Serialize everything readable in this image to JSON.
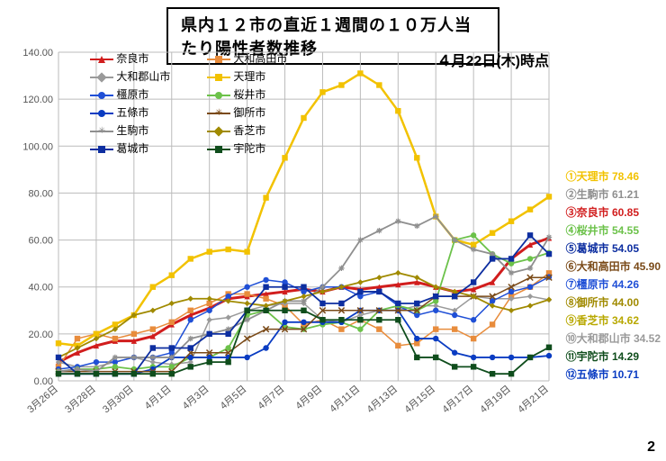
{
  "title": "県内１２市の直近１週間の１０万人当たり陽性者数推移",
  "subtitle": "４月22日(木)時点",
  "page_number": "2",
  "chart": {
    "type": "line",
    "ylim": [
      0,
      140
    ],
    "ytick_step": 20,
    "xticks": [
      "3月26日",
      "3月28日",
      "3月30日",
      "4月1日",
      "4月3日",
      "4月5日",
      "4月7日",
      "4月9日",
      "4月11日",
      "4月13日",
      "4月15日",
      "4月17日",
      "4月19日",
      "4月21日"
    ],
    "n_points": 27,
    "grid_color": "#bbbbbb",
    "background": "#ffffff",
    "series": [
      {
        "key": "nara",
        "name": "奈良市",
        "color": "#d11d1d",
        "marker": "triangle",
        "width": 3,
        "data": [
          8,
          12,
          15,
          17,
          17,
          19,
          24,
          28,
          31,
          35,
          36,
          37,
          38,
          39,
          38,
          40,
          39,
          40,
          41,
          42,
          40,
          38,
          39,
          42,
          52,
          58,
          60.85
        ]
      },
      {
        "key": "yamatotakada",
        "name": "大和高田市",
        "color": "#e88c3c",
        "marker": "square",
        "width": 1.5,
        "data": [
          6,
          18,
          20,
          18,
          20,
          22,
          25,
          30,
          33,
          37,
          37,
          35,
          32,
          24,
          26,
          22,
          26,
          22,
          15,
          16,
          22,
          22,
          18,
          24,
          36,
          40,
          45.9
        ]
      },
      {
        "key": "yamatokoriyama",
        "name": "大和郡山市",
        "color": "#9a9a9a",
        "marker": "diamond",
        "width": 1.5,
        "data": [
          8,
          6,
          6,
          8,
          10,
          8,
          7,
          8,
          26,
          27,
          30,
          32,
          33,
          33,
          26,
          25,
          28,
          30,
          30,
          32,
          32,
          30,
          36,
          35,
          35,
          36,
          34.52
        ]
      },
      {
        "key": "tenri",
        "name": "天理市",
        "color": "#f2c200",
        "marker": "square",
        "width": 2.5,
        "data": [
          16,
          15,
          20,
          24,
          28,
          40,
          45,
          52,
          55,
          56,
          55,
          78,
          95,
          112,
          123,
          126,
          131,
          126,
          115,
          95,
          70,
          60,
          58,
          63,
          68,
          73,
          78.46
        ]
      },
      {
        "key": "kashihara",
        "name": "橿原市",
        "color": "#1f4fd6",
        "marker": "circle",
        "width": 1.5,
        "data": [
          5,
          6,
          8,
          8,
          10,
          10,
          12,
          26,
          30,
          36,
          40,
          43,
          42,
          38,
          40,
          40,
          36,
          38,
          32,
          28,
          30,
          28,
          26,
          34,
          38,
          40,
          44.26
        ]
      },
      {
        "key": "sakurai",
        "name": "桜井市",
        "color": "#6cc24a",
        "marker": "circle",
        "width": 1.8,
        "data": [
          4,
          5,
          5,
          6,
          5,
          6,
          6,
          10,
          10,
          14,
          28,
          30,
          23,
          22,
          24,
          25,
          22,
          30,
          32,
          30,
          34,
          60,
          62,
          54,
          50,
          52,
          54.55
        ]
      },
      {
        "key": "gojo",
        "name": "五條市",
        "color": "#0a3cc2",
        "marker": "circle",
        "width": 1.8,
        "data": [
          3,
          3,
          3,
          3,
          3,
          5,
          10,
          10,
          10,
          10,
          10,
          14,
          25,
          25,
          25,
          25,
          30,
          30,
          30,
          18,
          18,
          12,
          10,
          10,
          10,
          10,
          10.71
        ]
      },
      {
        "key": "gose",
        "name": "御所市",
        "color": "#7a4a18",
        "marker": "x",
        "width": 1.5,
        "data": [
          4,
          4,
          4,
          4,
          4,
          4,
          4,
          12,
          12,
          12,
          18,
          22,
          22,
          22,
          30,
          30,
          30,
          30,
          30,
          30,
          36,
          36,
          36,
          36,
          40,
          44,
          44.0
        ]
      },
      {
        "key": "ikoma",
        "name": "生駒市",
        "color": "#8f8f8f",
        "marker": "star",
        "width": 1.8,
        "data": [
          4,
          5,
          4,
          10,
          10,
          10,
          10,
          18,
          20,
          22,
          26,
          30,
          34,
          34,
          40,
          48,
          60,
          64,
          68,
          66,
          70,
          60,
          56,
          54,
          46,
          48,
          61.21
        ]
      },
      {
        "key": "kashiba",
        "name": "香芝市",
        "color": "#a08a00",
        "marker": "diamond",
        "width": 1.8,
        "data": [
          10,
          14,
          18,
          22,
          28,
          30,
          33,
          35,
          35,
          34,
          33,
          32,
          34,
          36,
          38,
          40,
          42,
          44,
          46,
          44,
          40,
          38,
          36,
          32,
          30,
          32,
          34.62
        ]
      },
      {
        "key": "katsuragi",
        "name": "葛城市",
        "color": "#0d2ea0",
        "marker": "square",
        "width": 1.8,
        "data": [
          10,
          3,
          3,
          3,
          3,
          14,
          14,
          14,
          20,
          20,
          30,
          40,
          40,
          40,
          33,
          33,
          38,
          38,
          33,
          33,
          36,
          36,
          42,
          52,
          52,
          62,
          54.05
        ]
      },
      {
        "key": "uda",
        "name": "宇陀市",
        "color": "#0f4d1c",
        "marker": "square",
        "width": 1.8,
        "data": [
          3,
          3,
          3,
          3,
          3,
          3,
          3,
          6,
          8,
          8,
          30,
          30,
          30,
          30,
          26,
          26,
          26,
          26,
          26,
          10,
          10,
          6,
          6,
          3,
          3,
          10,
          14.29
        ]
      }
    ],
    "legend_layout": [
      [
        "nara",
        "yamatotakada"
      ],
      [
        "yamatokoriyama",
        "tenri"
      ],
      [
        "kashihara",
        "sakurai"
      ],
      [
        "gojo",
        "gose"
      ],
      [
        "ikoma",
        "kashiba"
      ],
      [
        "katsuragi",
        "uda"
      ]
    ],
    "side_ranking": [
      {
        "n": "①",
        "label": "天理市",
        "val": "78.46",
        "color": "#f2c200"
      },
      {
        "n": "②",
        "label": "生駒市",
        "val": "61.21",
        "color": "#8f8f8f"
      },
      {
        "n": "③",
        "label": "奈良市",
        "val": "60.85",
        "color": "#d11d1d"
      },
      {
        "n": "④",
        "label": "桜井市",
        "val": "54.55",
        "color": "#6cc24a"
      },
      {
        "n": "⑤",
        "label": "葛城市",
        "val": "54.05",
        "color": "#0d2ea0"
      },
      {
        "n": "⑥",
        "label": "大和高田市",
        "val": "45.90",
        "color": "#7a4a18"
      },
      {
        "n": "⑦",
        "label": "橿原市",
        "val": "44.26",
        "color": "#1f4fd6"
      },
      {
        "n": "⑧",
        "label": "御所市",
        "val": "44.00",
        "color": "#a08a00"
      },
      {
        "n": "⑨",
        "label": "香芝市",
        "val": "34.62",
        "color": "#b8a800"
      },
      {
        "n": "⑩",
        "label": "大和郡山市",
        "val": "34.52",
        "color": "#9a9a9a"
      },
      {
        "n": "⑪",
        "label": "宇陀市",
        "val": "14.29",
        "color": "#0f4d1c"
      },
      {
        "n": "⑫",
        "label": "五條市",
        "val": "10.71",
        "color": "#0a3cc2"
      }
    ]
  }
}
